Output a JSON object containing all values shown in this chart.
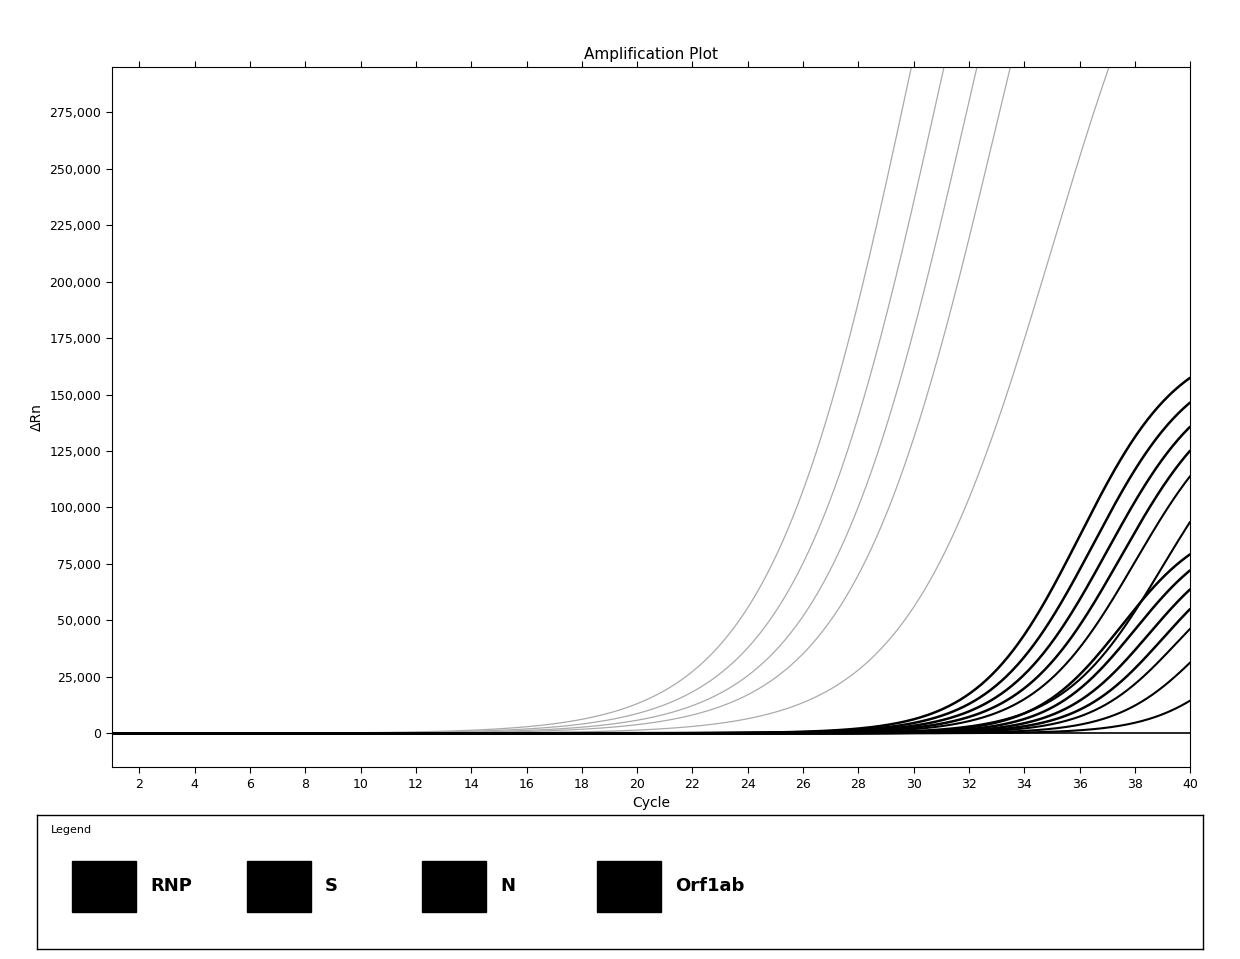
{
  "title": "Amplification Plot",
  "xlabel": "Cycle",
  "ylabel": "ΔRn",
  "xlim": [
    1,
    40
  ],
  "ylim": [
    -15000,
    295000
  ],
  "xticks": [
    2,
    4,
    6,
    8,
    10,
    12,
    14,
    16,
    18,
    20,
    22,
    24,
    26,
    28,
    30,
    32,
    34,
    36,
    38,
    40
  ],
  "yticks": [
    0,
    25000,
    50000,
    75000,
    100000,
    125000,
    150000,
    175000,
    200000,
    225000,
    250000,
    275000
  ],
  "ytick_labels": [
    "0",
    "25,000",
    "50,000",
    "75,000",
    "100,000",
    "125,000",
    "150,000",
    "175,000",
    "200,000",
    "225,000",
    "250,000",
    "275,000"
  ],
  "background_color": "#ffffff",
  "legend_labels": [
    "RNP",
    "S",
    "N",
    "Orf1ab"
  ],
  "thin_line_color": "#aaaaaa",
  "thick_line_color": "#000000",
  "curves": [
    {
      "Ct": 30.0,
      "plateau": 600000,
      "slope": 0.38,
      "lw": 0.9,
      "thin": true
    },
    {
      "Ct": 31.0,
      "plateau": 580000,
      "slope": 0.38,
      "lw": 0.9,
      "thin": true
    },
    {
      "Ct": 32.0,
      "plateau": 560000,
      "slope": 0.38,
      "lw": 0.9,
      "thin": true
    },
    {
      "Ct": 33.0,
      "plateau": 540000,
      "slope": 0.38,
      "lw": 0.9,
      "thin": true
    },
    {
      "Ct": 35.0,
      "plateau": 430000,
      "slope": 0.38,
      "lw": 0.9,
      "thin": true
    },
    {
      "Ct": 36.0,
      "plateau": 175000,
      "slope": 0.55,
      "lw": 1.8,
      "thin": false
    },
    {
      "Ct": 36.5,
      "plateau": 168000,
      "slope": 0.55,
      "lw": 1.8,
      "thin": false
    },
    {
      "Ct": 37.0,
      "plateau": 162000,
      "slope": 0.55,
      "lw": 1.8,
      "thin": false
    },
    {
      "Ct": 37.5,
      "plateau": 157000,
      "slope": 0.55,
      "lw": 1.8,
      "thin": false
    },
    {
      "Ct": 38.0,
      "plateau": 152000,
      "slope": 0.55,
      "lw": 1.5,
      "thin": false
    },
    {
      "Ct": 39.0,
      "plateau": 148000,
      "slope": 0.55,
      "lw": 1.5,
      "thin": false
    },
    {
      "Ct": 37.5,
      "plateau": 95000,
      "slope": 0.65,
      "lw": 1.8,
      "thin": false
    },
    {
      "Ct": 38.0,
      "plateau": 92000,
      "slope": 0.65,
      "lw": 1.8,
      "thin": false
    },
    {
      "Ct": 38.5,
      "plateau": 88000,
      "slope": 0.65,
      "lw": 1.8,
      "thin": false
    },
    {
      "Ct": 39.0,
      "plateau": 84000,
      "slope": 0.65,
      "lw": 1.8,
      "thin": false
    },
    {
      "Ct": 39.5,
      "plateau": 80000,
      "slope": 0.65,
      "lw": 1.5,
      "thin": false
    },
    {
      "Ct": 40.5,
      "plateau": 75000,
      "slope": 0.65,
      "lw": 1.5,
      "thin": false
    },
    {
      "Ct": 42.0,
      "plateau": 68000,
      "slope": 0.65,
      "lw": 1.5,
      "thin": false
    }
  ]
}
